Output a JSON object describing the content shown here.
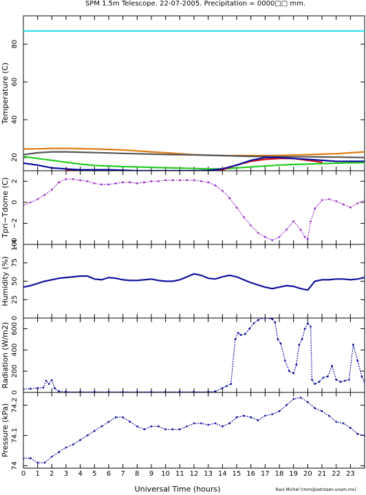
{
  "title": "SPM 1.5m Telescope. 22-07-2005. Precipitation = 0000□□ mm.",
  "xlabel": "Universal Time (hours)",
  "credit": "Raul Michel (rmm@astrosen.unam.mx)",
  "colors": {
    "cyan": "#33ddee",
    "orange": "#e07a10",
    "gray": "#555555",
    "green": "#22cc22",
    "red": "#dd1111",
    "blue": "#0a0aa0",
    "purple": "#9a30c8",
    "navy": "#1010a0",
    "black": "#000000"
  },
  "chart_data": [
    {
      "type": "line",
      "ylabel": "Temperature (C)",
      "xlim": [
        0,
        24
      ],
      "ylim": [
        13,
        95
      ],
      "y_ticks": [
        20,
        40,
        60,
        80
      ],
      "series": [
        {
          "color": "cyan",
          "x": [
            0,
            24
          ],
          "y": [
            87,
            87
          ]
        },
        {
          "color": "orange",
          "x": [
            0,
            1,
            2,
            3,
            4,
            5,
            6,
            7,
            8,
            9,
            10,
            11,
            12,
            13,
            14,
            15,
            16,
            17,
            18,
            19,
            20,
            21,
            22,
            23,
            24
          ],
          "y": [
            24.5,
            24.6,
            24.8,
            24.8,
            24.7,
            24.5,
            24.3,
            24.0,
            23.5,
            23.0,
            22.5,
            22.0,
            21.5,
            21.2,
            21.0,
            21.0,
            21.0,
            21.0,
            21.1,
            21.3,
            21.5,
            21.8,
            22.0,
            22.5,
            23.0
          ]
        },
        {
          "color": "gray",
          "x": [
            0,
            1,
            2,
            3,
            4,
            5,
            6,
            7,
            8,
            9,
            10,
            11,
            12,
            13,
            14,
            15,
            16,
            17,
            18,
            19,
            20,
            21,
            22,
            23,
            24
          ],
          "y": [
            21.5,
            22.5,
            23.0,
            23.0,
            22.8,
            22.6,
            22.4,
            22.2,
            22.0,
            21.8,
            21.6,
            21.5,
            21.4,
            21.2,
            21.0,
            20.8,
            20.6,
            20.5,
            20.4,
            20.4,
            20.4,
            20.3,
            20.2,
            20.1,
            20.0
          ]
        },
        {
          "color": "green",
          "x": [
            0,
            1,
            2,
            3,
            4,
            5,
            6,
            7,
            8,
            9,
            10,
            11,
            12,
            13,
            14,
            15,
            16,
            17,
            18,
            19,
            20,
            21,
            22,
            23,
            24
          ],
          "y": [
            20.5,
            19.5,
            18.5,
            17.5,
            16.5,
            15.8,
            15.5,
            15.2,
            15.0,
            14.8,
            14.6,
            14.4,
            14.2,
            14.0,
            14.0,
            14.5,
            15.0,
            15.5,
            16.0,
            16.3,
            16.5,
            16.8,
            17.0,
            17.2,
            17.3
          ]
        },
        {
          "color": "red",
          "x": [
            3,
            4,
            5,
            6,
            7,
            8,
            9,
            10,
            11,
            12,
            13,
            14,
            15,
            16,
            17,
            18,
            19,
            20,
            21
          ],
          "y": [
            13.5,
            13.0,
            12.8,
            12.8,
            12.8,
            12.8,
            12.6,
            12.4,
            12.2,
            12.0,
            12.0,
            13.5,
            16.0,
            18.0,
            19.0,
            19.5,
            19.5,
            18.5,
            17.5
          ]
        },
        {
          "color": "blue",
          "x": [
            0,
            1,
            2,
            3,
            4,
            5,
            6,
            7,
            8,
            9,
            10,
            11,
            12,
            13,
            14,
            15,
            16,
            17,
            18,
            19,
            20,
            21,
            22,
            23,
            24
          ],
          "y": [
            17.0,
            16.0,
            14.5,
            14.0,
            13.5,
            13.5,
            13.5,
            13.3,
            13.0,
            13.0,
            13.0,
            13.0,
            13.0,
            13.2,
            14.0,
            16.0,
            18.5,
            20.0,
            20.0,
            19.5,
            19.0,
            18.5,
            18.0,
            18.0,
            18.0
          ]
        }
      ]
    },
    {
      "type": "scatter",
      "ylabel": "Tpri−Tdome (C)",
      "xlim": [
        0,
        24
      ],
      "ylim": [
        -4,
        3
      ],
      "y_ticks": [
        -4,
        -2,
        0,
        2
      ],
      "y_tick_labels": [
        "−4",
        "−2",
        "0",
        "2"
      ],
      "series": [
        {
          "color": "purple",
          "x": [
            0,
            0.5,
            1,
            1.5,
            2,
            2.5,
            3,
            3.5,
            4,
            4.5,
            5,
            5.5,
            6,
            6.5,
            7,
            7.5,
            8,
            8.5,
            9,
            9.5,
            10,
            10.5,
            11,
            11.5,
            12,
            12.5,
            13,
            13.5,
            14,
            14.5,
            15,
            15.5,
            16,
            16.5,
            17,
            17.5,
            18,
            18.5,
            19,
            19.5,
            19.8,
            20,
            20.2,
            20.5,
            21,
            21.5,
            22,
            22.5,
            23,
            23.5,
            24
          ],
          "y": [
            -0.3,
            0,
            0.3,
            0.7,
            1.2,
            1.9,
            2.2,
            2.2,
            2.1,
            2.0,
            1.8,
            1.7,
            1.7,
            1.8,
            1.9,
            1.9,
            1.8,
            1.9,
            2.0,
            2.0,
            2.1,
            2.1,
            2.1,
            2.1,
            2.1,
            2.0,
            1.9,
            1.6,
            1.1,
            0.4,
            -0.5,
            -1.4,
            -2.2,
            -2.9,
            -3.3,
            -3.6,
            -3.3,
            -2.6,
            -1.8,
            -2.6,
            -3.3,
            -3.5,
            -1.8,
            -0.6,
            0.2,
            0.3,
            0.1,
            -0.2,
            -0.5,
            -0.1,
            0.2
          ]
        }
      ]
    },
    {
      "type": "line",
      "ylabel": "Humidity (%)",
      "xlim": [
        0,
        24
      ],
      "ylim": [
        0,
        100
      ],
      "y_ticks": [
        0,
        25,
        50,
        75,
        100
      ],
      "series": [
        {
          "color": "navy",
          "x": [
            0,
            0.5,
            1,
            1.5,
            2,
            2.5,
            3,
            3.5,
            4,
            4.5,
            5,
            5.5,
            6,
            6.5,
            7,
            7.5,
            8,
            8.5,
            9,
            9.5,
            10,
            10.5,
            11,
            11.5,
            12,
            12.5,
            13,
            13.5,
            14,
            14.5,
            15,
            15.5,
            16,
            16.5,
            17,
            17.5,
            18,
            18.5,
            19,
            19.5,
            20,
            20.5,
            21,
            21.5,
            22,
            22.5,
            23,
            23.5,
            24
          ],
          "y": [
            42,
            44,
            47,
            50,
            52,
            54,
            55,
            56,
            57,
            57,
            53,
            52,
            55,
            54,
            52,
            51,
            51,
            52,
            53,
            51,
            50,
            50,
            52,
            56,
            60,
            58,
            54,
            53,
            56,
            58,
            56,
            52,
            48,
            45,
            42,
            40,
            42,
            44,
            43,
            40,
            38,
            50,
            52,
            52,
            53,
            53,
            52,
            53,
            55
          ]
        }
      ]
    },
    {
      "type": "scatter",
      "ylabel": "Radiation (W/m2)",
      "xlim": [
        0,
        24
      ],
      "ylim": [
        0,
        700
      ],
      "y_ticks": [
        0,
        200,
        400,
        600
      ],
      "series": [
        {
          "color": "navy",
          "x": [
            0,
            0.5,
            1,
            1.4,
            1.6,
            1.8,
            2,
            2.2,
            2.5,
            3,
            4,
            5,
            6,
            7,
            8,
            9,
            10,
            11,
            12,
            13,
            13.5,
            14,
            14.3,
            14.6,
            14.9,
            15.1,
            15.3,
            15.6,
            15.9,
            16.2,
            16.5,
            16.8,
            17,
            17.3,
            17.5,
            17.7,
            17.9,
            18.1,
            18.4,
            18.7,
            19,
            19.2,
            19.4,
            19.6,
            19.8,
            20,
            20.2,
            20.3,
            20.5,
            20.8,
            21.1,
            21.4,
            21.7,
            22,
            22.3,
            22.6,
            22.9,
            23.2,
            23.5,
            23.8,
            24
          ],
          "y": [
            30,
            35,
            40,
            45,
            110,
            80,
            115,
            40,
            10,
            5,
            5,
            5,
            5,
            5,
            5,
            5,
            5,
            5,
            5,
            5,
            10,
            40,
            60,
            80,
            500,
            560,
            540,
            550,
            600,
            650,
            680,
            700,
            700,
            700,
            690,
            660,
            500,
            460,
            300,
            200,
            180,
            260,
            450,
            500,
            600,
            650,
            620,
            120,
            80,
            100,
            140,
            150,
            250,
            120,
            100,
            110,
            120,
            450,
            300,
            150,
            100
          ]
        }
      ]
    },
    {
      "type": "scatter",
      "ylabel": "Pressure (kPa)",
      "xlim": [
        0,
        24
      ],
      "ylim": [
        73.992,
        74.242
      ],
      "y_ticks": [
        74,
        74.1,
        74.2
      ],
      "series": [
        {
          "color": "navy",
          "x": [
            0,
            0.5,
            1,
            1.5,
            2,
            2.5,
            3,
            3.5,
            4,
            4.5,
            5,
            5.5,
            6,
            6.5,
            7,
            7.5,
            8,
            8.5,
            9,
            9.5,
            10,
            10.5,
            11,
            11.5,
            12,
            12.5,
            13,
            13.5,
            14,
            14.5,
            15,
            15.5,
            16,
            16.5,
            17,
            17.5,
            18,
            18.5,
            19,
            19.5,
            20,
            20.5,
            21,
            21.5,
            22,
            22.5,
            23,
            23.5,
            24
          ],
          "y": [
            74.025,
            74.025,
            74.01,
            74.01,
            74.03,
            74.045,
            74.06,
            74.07,
            74.085,
            74.1,
            74.115,
            74.13,
            74.145,
            74.16,
            74.16,
            74.145,
            74.13,
            74.12,
            74.13,
            74.13,
            74.12,
            74.12,
            74.12,
            74.13,
            74.14,
            74.14,
            74.135,
            74.14,
            74.13,
            74.14,
            74.16,
            74.165,
            74.16,
            74.15,
            74.165,
            74.17,
            74.18,
            74.2,
            74.22,
            74.225,
            74.21,
            74.19,
            74.18,
            74.165,
            74.145,
            74.14,
            74.125,
            74.105,
            74.1
          ]
        }
      ]
    }
  ]
}
